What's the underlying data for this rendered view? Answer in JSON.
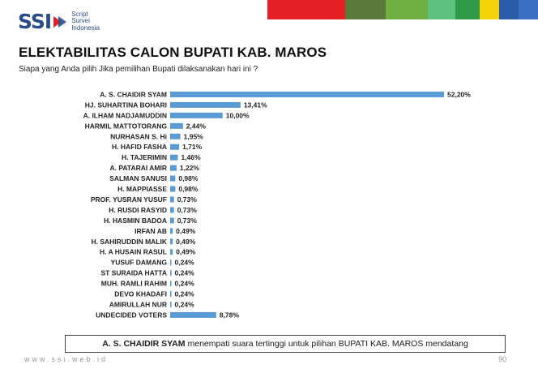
{
  "logo": {
    "brand": "SSI",
    "sub1": "Script",
    "sub2": "Survei",
    "sub3": "Indonesia"
  },
  "colors": {
    "bar": "#5b9bd5",
    "brand": "#2b4c8c",
    "strip": [
      "#e31e24",
      "#5a7a3a",
      "#72b043",
      "#5fbf7f",
      "#2f9b49",
      "#f5d20a",
      "#2a5bab",
      "#3a6fc1"
    ]
  },
  "title": "ELEKTABILITAS CALON BUPATI KAB. MAROS",
  "subtitle": "Siapa yang Anda pilih Jika pemilihan Bupati dilaksanakan hari ini ?",
  "chart_data": {
    "type": "bar",
    "orientation": "horizontal",
    "categories": [
      "A. S. CHAIDIR SYAM",
      "HJ. SUHARTINA BOHARI",
      "A. ILHAM NADJAMUDDIN",
      "HARMIL MATTOTORANG",
      "NURHASAN S. Hi",
      "H. HAFID FASHA",
      "H. TAJERIMIN",
      "A. PATARAI AMIR",
      "SALMAN SANUSI",
      "H. MAPPIASSE",
      "PROF. YUSRAN YUSUF",
      "H. RUSDI RASYID",
      "H. HASMIN BADOA",
      "IRFAN AB",
      "H. SAHIRUDDIN MALIK",
      "H. A HUSAIN RASUL",
      "YUSUF DAMANG",
      "ST SURAIDA HATTA",
      "MUH. RAMLI RAHIM",
      "DEVO KHADAFI",
      "AMIRULLAH NUR",
      "UNDECIDED VOTERS"
    ],
    "values": [
      52.2,
      13.41,
      10.0,
      2.44,
      1.95,
      1.71,
      1.46,
      1.22,
      0.98,
      0.98,
      0.73,
      0.73,
      0.73,
      0.49,
      0.49,
      0.49,
      0.24,
      0.24,
      0.24,
      0.24,
      0.24,
      8.78
    ],
    "labels": [
      "52,20%",
      "13,41%",
      "10,00%",
      "2,44%",
      "1,95%",
      "1,71%",
      "1,46%",
      "1,22%",
      "0,98%",
      "0,98%",
      "0,73%",
      "0,73%",
      "0,73%",
      "0,49%",
      "0,49%",
      "0,49%",
      "0,24%",
      "0,24%",
      "0,24%",
      "0,24%",
      "0,24%",
      "8,78%"
    ],
    "xlim": [
      0,
      55
    ],
    "grid": false,
    "legend": "none"
  },
  "callout": {
    "bold": "A. S. CHAIDIR SYAM",
    "rest": "menempati suara tertinggi untuk pilihan BUPATI KAB. MAROS mendatang"
  },
  "footer": {
    "url": "www.ssi.web.id",
    "page": "90"
  }
}
